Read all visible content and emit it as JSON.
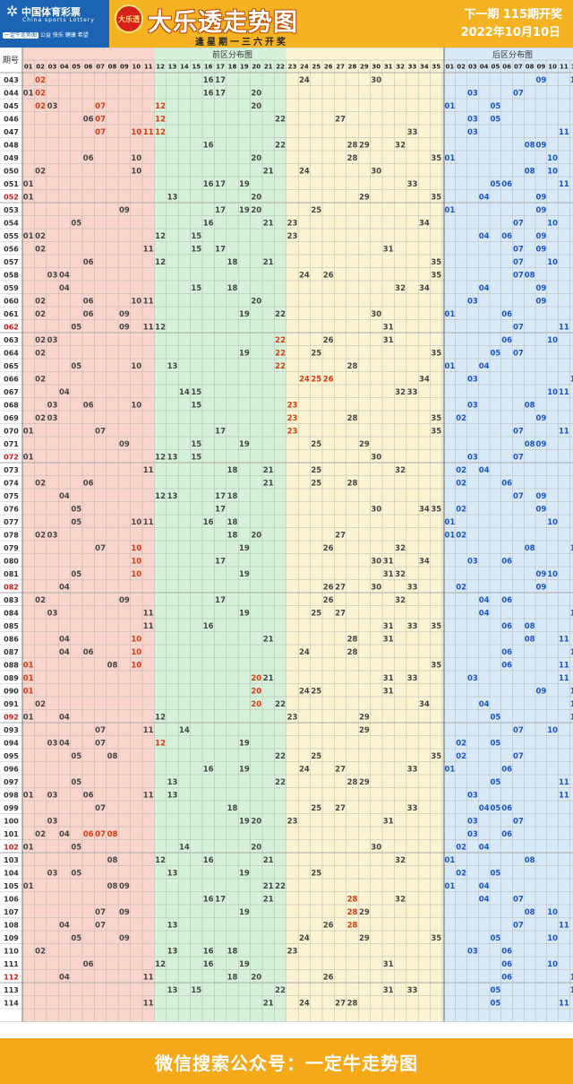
{
  "header": {
    "brand_cn": "中国体育彩票",
    "brand_en": "China sports Lottery",
    "slogan_badge": "一定牛走势图",
    "slogan_text": "公益 快乐 健康 希望",
    "brand_circle_text": "大乐透",
    "title": "大乐透走势图",
    "subtitle": "逢星期一三六开奖",
    "next_draw": "下一期 115期开奖",
    "draw_date": "2022年10月10日"
  },
  "footer": {
    "text": "微信搜索公众号：一定牛走势图"
  },
  "colors": {
    "zone1": "#f9d5cc",
    "zone2": "#d5f1da",
    "zone3": "#fbf4d2",
    "back": "#d8eaf8",
    "front_num": "#444444",
    "back_num": "#1a52c8",
    "hot": "#d63a10",
    "period_red": "#d01818",
    "grid": "#aaaaaa"
  },
  "chart_data": {
    "type": "table",
    "header": {
      "period_label": "期号",
      "front_label": "前区分布图",
      "back_label": "后区分布图"
    },
    "front_columns": [
      "01",
      "02",
      "03",
      "04",
      "05",
      "06",
      "07",
      "08",
      "09",
      "10",
      "11",
      "12",
      "13",
      "14",
      "15",
      "16",
      "17",
      "18",
      "19",
      "20",
      "21",
      "22",
      "23",
      "24",
      "25",
      "26",
      "27",
      "28",
      "29",
      "30",
      "31",
      "32",
      "33",
      "34",
      "35"
    ],
    "back_columns": [
      "01",
      "02",
      "03",
      "04",
      "05",
      "06",
      "07",
      "08",
      "09",
      "10",
      "11",
      "12"
    ],
    "rows": [
      {
        "p": "043",
        "f": [
          2,
          16,
          17,
          24,
          30
        ],
        "b": [
          9,
          12
        ],
        "h": [
          2
        ]
      },
      {
        "p": "044",
        "f": [
          1,
          2,
          16,
          17,
          20
        ],
        "b": [
          3,
          7
        ],
        "h": [
          2
        ]
      },
      {
        "p": "045",
        "f": [
          2,
          3,
          7,
          12,
          20
        ],
        "b": [
          1,
          5
        ],
        "h": [
          2,
          7,
          12
        ]
      },
      {
        "p": "046",
        "f": [
          6,
          7,
          12,
          22,
          27
        ],
        "b": [
          3,
          5
        ],
        "h": [
          7,
          12
        ]
      },
      {
        "p": "047",
        "f": [
          7,
          10,
          11,
          12,
          33
        ],
        "b": [
          3,
          11
        ],
        "h": [
          7,
          10,
          11,
          12
        ]
      },
      {
        "p": "048",
        "f": [
          16,
          22,
          28,
          29,
          32
        ],
        "b": [
          8,
          9
        ]
      },
      {
        "p": "049",
        "f": [
          6,
          10,
          20,
          28,
          35
        ],
        "b": [
          1,
          10
        ]
      },
      {
        "p": "050",
        "f": [
          2,
          10,
          21,
          24,
          30
        ],
        "b": [
          8,
          10
        ]
      },
      {
        "p": "051",
        "f": [
          1,
          16,
          17,
          19,
          33
        ],
        "b": [
          5,
          6,
          11
        ]
      },
      {
        "p": "052",
        "f": [
          1,
          13,
          20,
          29,
          35
        ],
        "b": [
          4,
          9
        ],
        "r": 1
      },
      {
        "p": "053",
        "f": [
          9,
          17,
          19,
          20,
          25
        ],
        "b": [
          1,
          9
        ]
      },
      {
        "p": "054",
        "f": [
          5,
          16,
          21,
          23,
          34
        ],
        "b": [
          7,
          10
        ]
      },
      {
        "p": "055",
        "f": [
          1,
          2,
          12,
          15,
          23
        ],
        "b": [
          4,
          6,
          9
        ]
      },
      {
        "p": "056",
        "f": [
          2,
          11,
          15,
          17,
          31
        ],
        "b": [
          7,
          9
        ]
      },
      {
        "p": "057",
        "f": [
          6,
          12,
          18,
          21,
          35
        ],
        "b": [
          7,
          10
        ]
      },
      {
        "p": "058",
        "f": [
          3,
          4,
          24,
          26,
          35
        ],
        "b": [
          7,
          8
        ]
      },
      {
        "p": "059",
        "f": [
          4,
          15,
          18,
          32,
          34
        ],
        "b": [
          4,
          9
        ]
      },
      {
        "p": "060",
        "f": [
          2,
          6,
          10,
          11,
          20
        ],
        "b": [
          3,
          9
        ]
      },
      {
        "p": "061",
        "f": [
          2,
          6,
          9,
          19,
          22,
          30
        ],
        "b": [
          1,
          6
        ]
      },
      {
        "p": "062",
        "f": [
          5,
          9,
          11,
          12,
          31
        ],
        "b": [
          7,
          11
        ],
        "r": 1
      },
      {
        "p": "063",
        "f": [
          2,
          3,
          22,
          26,
          31
        ],
        "b": [
          6,
          10
        ],
        "h": [
          22
        ]
      },
      {
        "p": "064",
        "f": [
          2,
          19,
          22,
          25,
          35
        ],
        "b": [
          5,
          7
        ],
        "h": [
          22
        ]
      },
      {
        "p": "065",
        "f": [
          5,
          10,
          13,
          22,
          28
        ],
        "b": [
          1,
          4
        ],
        "h": [
          22
        ]
      },
      {
        "p": "066",
        "f": [
          2,
          24,
          25,
          26,
          34
        ],
        "b": [
          3,
          12
        ],
        "h": [
          24,
          25,
          26
        ]
      },
      {
        "p": "067",
        "f": [
          4,
          14,
          15,
          32,
          33
        ],
        "b": [
          10,
          11
        ]
      },
      {
        "p": "068",
        "f": [
          3,
          6,
          10,
          15,
          23
        ],
        "b": [
          3,
          8
        ],
        "h": [
          23
        ]
      },
      {
        "p": "069",
        "f": [
          2,
          3,
          23,
          28,
          35
        ],
        "b": [
          2,
          9
        ],
        "h": [
          23
        ]
      },
      {
        "p": "070",
        "f": [
          1,
          7,
          17,
          23,
          35
        ],
        "b": [
          7,
          11
        ],
        "h": [
          23
        ]
      },
      {
        "p": "071",
        "f": [
          9,
          15,
          19,
          25,
          29
        ],
        "b": [
          8,
          9
        ]
      },
      {
        "p": "072",
        "f": [
          1,
          12,
          13,
          15,
          30
        ],
        "b": [
          3,
          7
        ],
        "r": 1
      },
      {
        "p": "073",
        "f": [
          11,
          18,
          21,
          25,
          32
        ],
        "b": [
          2,
          4
        ]
      },
      {
        "p": "074",
        "f": [
          2,
          6,
          21,
          25,
          28
        ],
        "b": [
          2,
          6
        ]
      },
      {
        "p": "075",
        "f": [
          4,
          12,
          13,
          17,
          18
        ],
        "b": [
          7,
          9
        ]
      },
      {
        "p": "076",
        "f": [
          5,
          17,
          30,
          34,
          35
        ],
        "b": [
          2,
          9
        ]
      },
      {
        "p": "077",
        "f": [
          5,
          10,
          11,
          16,
          18
        ],
        "b": [
          1,
          10
        ]
      },
      {
        "p": "078",
        "f": [
          2,
          3,
          18,
          20,
          27
        ],
        "b": [
          1,
          2
        ]
      },
      {
        "p": "079",
        "f": [
          7,
          10,
          19,
          26,
          32
        ],
        "b": [
          8,
          12
        ],
        "h": [
          10
        ]
      },
      {
        "p": "080",
        "f": [
          10,
          17,
          30,
          31,
          34
        ],
        "b": [
          3,
          6
        ],
        "h": [
          10
        ]
      },
      {
        "p": "081",
        "f": [
          5,
          10,
          19,
          31,
          32
        ],
        "b": [
          9,
          10
        ],
        "h": [
          10
        ]
      },
      {
        "p": "082",
        "f": [
          4,
          26,
          27,
          30,
          33
        ],
        "b": [
          2,
          9
        ],
        "r": 1
      },
      {
        "p": "083",
        "f": [
          2,
          9,
          17,
          26,
          32
        ],
        "b": [
          4,
          6
        ]
      },
      {
        "p": "084",
        "f": [
          3,
          11,
          19,
          25,
          27
        ],
        "b": [
          4,
          12
        ]
      },
      {
        "p": "085",
        "f": [
          11,
          16,
          31,
          33,
          35
        ],
        "b": [
          6,
          8
        ]
      },
      {
        "p": "086",
        "f": [
          4,
          10,
          21,
          28,
          31
        ],
        "b": [
          8,
          11
        ],
        "h": [
          10
        ]
      },
      {
        "p": "087",
        "f": [
          4,
          6,
          10,
          24,
          28
        ],
        "b": [
          6,
          12
        ],
        "h": [
          10
        ]
      },
      {
        "p": "088",
        "f": [
          1,
          8,
          10,
          35
        ],
        "b": [
          6,
          11
        ],
        "h": [
          1,
          10
        ]
      },
      {
        "p": "089",
        "f": [
          1,
          20,
          21,
          31,
          33
        ],
        "b": [
          3,
          11
        ],
        "h": [
          1,
          20
        ]
      },
      {
        "p": "090",
        "f": [
          1,
          20,
          24,
          25,
          31
        ],
        "b": [
          9,
          12
        ],
        "h": [
          1,
          20
        ]
      },
      {
        "p": "091",
        "f": [
          2,
          20,
          22,
          34
        ],
        "b": [
          4,
          12
        ],
        "h": [
          20
        ]
      },
      {
        "p": "092",
        "f": [
          1,
          4,
          12,
          23,
          29
        ],
        "b": [
          5,
          12
        ],
        "r": 1
      },
      {
        "p": "093",
        "f": [
          7,
          11,
          14,
          29
        ],
        "b": [
          7,
          10
        ]
      },
      {
        "p": "094",
        "f": [
          3,
          4,
          7,
          12,
          19
        ],
        "b": [
          2,
          5
        ],
        "h": [
          12
        ]
      },
      {
        "p": "095",
        "f": [
          5,
          8,
          22,
          25,
          35
        ],
        "b": [
          2,
          7
        ]
      },
      {
        "p": "096",
        "f": [
          16,
          19,
          24,
          27,
          33
        ],
        "b": [
          1,
          6
        ]
      },
      {
        "p": "097",
        "f": [
          5,
          13,
          22,
          28,
          29
        ],
        "b": [
          5,
          11
        ]
      },
      {
        "p": "098",
        "f": [
          1,
          3,
          6,
          11,
          13
        ],
        "b": [
          3,
          11
        ]
      },
      {
        "p": "099",
        "f": [
          7,
          18,
          25,
          27,
          33
        ],
        "b": [
          4,
          5,
          6
        ]
      },
      {
        "p": "100",
        "f": [
          3,
          19,
          20,
          23,
          31
        ],
        "b": [
          3,
          7
        ]
      },
      {
        "p": "101",
        "f": [
          2,
          4,
          6,
          7,
          8
        ],
        "b": [
          3,
          6
        ],
        "h": [
          6,
          7,
          8
        ]
      },
      {
        "p": "102",
        "f": [
          1,
          5,
          14,
          20,
          30
        ],
        "b": [
          2,
          4
        ],
        "r": 1
      },
      {
        "p": "103",
        "f": [
          8,
          12,
          16,
          21,
          32
        ],
        "b": [
          1,
          8
        ]
      },
      {
        "p": "104",
        "f": [
          3,
          5,
          13,
          19,
          25
        ],
        "b": [
          2,
          5
        ]
      },
      {
        "p": "105",
        "f": [
          1,
          8,
          9,
          21,
          22
        ],
        "b": [
          1,
          4
        ]
      },
      {
        "p": "106",
        "f": [
          16,
          17,
          21,
          28,
          32
        ],
        "b": [
          4,
          7
        ],
        "h": [
          28
        ]
      },
      {
        "p": "107",
        "f": [
          7,
          9,
          19,
          28,
          29
        ],
        "b": [
          8,
          10
        ],
        "h": [
          28
        ]
      },
      {
        "p": "108",
        "f": [
          4,
          7,
          13,
          26,
          28
        ],
        "b": [
          7,
          11
        ],
        "h": [
          28
        ]
      },
      {
        "p": "109",
        "f": [
          5,
          9,
          24,
          29,
          35
        ],
        "b": [
          5,
          10
        ]
      },
      {
        "p": "110",
        "f": [
          2,
          13,
          16,
          18,
          23
        ],
        "b": [
          3,
          6
        ]
      },
      {
        "p": "111",
        "f": [
          6,
          12,
          16,
          19,
          31
        ],
        "b": [
          6,
          10
        ]
      },
      {
        "p": "112",
        "f": [
          4,
          11,
          18,
          20,
          26
        ],
        "b": [
          6,
          12
        ],
        "r": 1
      },
      {
        "p": "113",
        "f": [
          13,
          15,
          22,
          31,
          33
        ],
        "b": [
          5,
          12
        ]
      },
      {
        "p": "114",
        "f": [
          11,
          21,
          24,
          27,
          28
        ],
        "b": [
          5,
          11
        ]
      }
    ]
  }
}
